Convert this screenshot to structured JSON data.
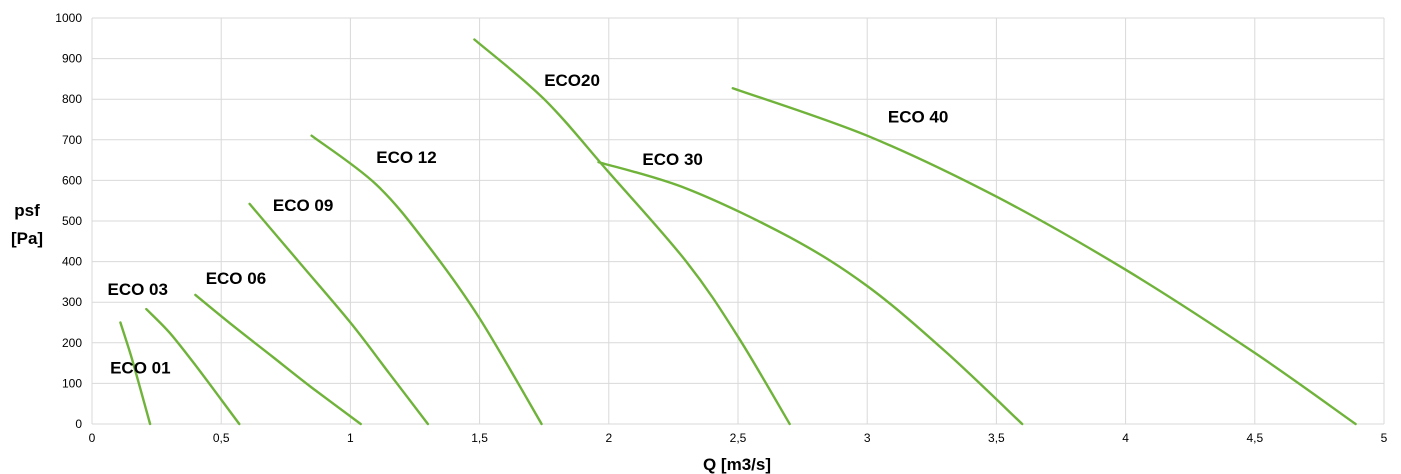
{
  "chart_data": {
    "type": "line",
    "title": "",
    "xlabel": "Q [m3/s]",
    "ylabel_lines": [
      "psf",
      "[Pa]"
    ],
    "xlim": [
      0,
      5
    ],
    "ylim": [
      0,
      1000
    ],
    "x_ticks": [
      0,
      0.5,
      1,
      1.5,
      2,
      2.5,
      3,
      3.5,
      4,
      4.5,
      5
    ],
    "x_tick_labels": [
      "0",
      "0,5",
      "1",
      "1,5",
      "2",
      "2,5",
      "3",
      "3,5",
      "4",
      "4,5",
      "5"
    ],
    "y_ticks": [
      0,
      100,
      200,
      300,
      400,
      500,
      600,
      700,
      800,
      900,
      1000
    ],
    "y_tick_labels": [
      "0",
      "100",
      "200",
      "300",
      "400",
      "500",
      "600",
      "700",
      "800",
      "900",
      "1000"
    ],
    "grid": true,
    "legend": "none",
    "line_color": "#70b33b",
    "series": [
      {
        "name": "ECO 01",
        "x": [
          0.11,
          0.15,
          0.19,
          0.225
        ],
        "y": [
          250,
          170,
          80,
          0
        ]
      },
      {
        "name": "ECO 03",
        "x": [
          0.21,
          0.3,
          0.4,
          0.5,
          0.57
        ],
        "y": [
          283,
          225,
          145,
          60,
          0
        ]
      },
      {
        "name": "ECO 06",
        "x": [
          0.4,
          0.55,
          0.7,
          0.85,
          1.04
        ],
        "y": [
          318,
          240,
          165,
          90,
          0
        ]
      },
      {
        "name": "ECO 09",
        "x": [
          0.61,
          0.8,
          1.0,
          1.15,
          1.3
        ],
        "y": [
          542,
          400,
          250,
          125,
          0
        ]
      },
      {
        "name": "ECO 12",
        "x": [
          0.85,
          1.1,
          1.3,
          1.5,
          1.74
        ],
        "y": [
          710,
          590,
          440,
          260,
          0
        ]
      },
      {
        "name": "ECO20",
        "x": [
          1.48,
          1.75,
          2.0,
          2.3,
          2.5,
          2.7
        ],
        "y": [
          947,
          800,
          620,
          400,
          215,
          0
        ]
      },
      {
        "name": "ECO 30",
        "x": [
          1.96,
          2.3,
          2.7,
          3.0,
          3.3,
          3.6
        ],
        "y": [
          645,
          580,
          460,
          340,
          180,
          0
        ]
      },
      {
        "name": "ECO 40",
        "x": [
          2.48,
          3.0,
          3.5,
          4.0,
          4.5,
          4.89
        ],
        "y": [
          827,
          710,
          560,
          380,
          175,
          0
        ]
      }
    ],
    "annotations": [
      {
        "text": "ECO 01",
        "x": 0.07,
        "y": 125
      },
      {
        "text": "ECO 03",
        "x": 0.06,
        "y": 318
      },
      {
        "text": "ECO 06",
        "x": 0.44,
        "y": 345
      },
      {
        "text": "ECO 09",
        "x": 0.7,
        "y": 525
      },
      {
        "text": "ECO 12",
        "x": 1.1,
        "y": 643
      },
      {
        "text": "ECO20",
        "x": 1.75,
        "y": 832
      },
      {
        "text": "ECO 30",
        "x": 2.13,
        "y": 638
      },
      {
        "text": "ECO 40",
        "x": 3.08,
        "y": 742
      }
    ]
  }
}
